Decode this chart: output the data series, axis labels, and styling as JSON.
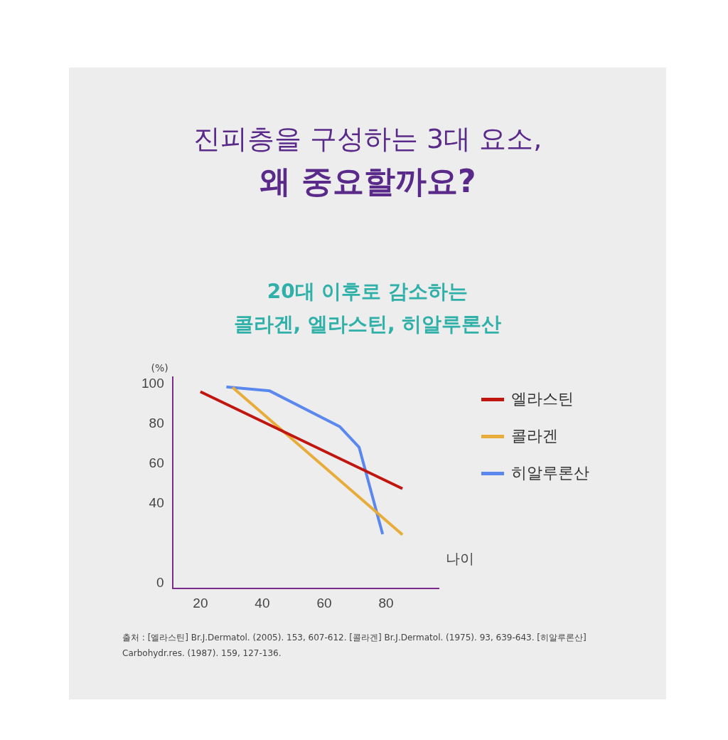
{
  "chart_data": {
    "type": "line",
    "title": "진피층을 구성하는 3대 요소,\n왜 중요할까요?",
    "subtitle": "20대 이후로 감소하는\n콜라겐, 엘라스틴, 히알루론산",
    "xlabel": "나이",
    "ylabel": "(%)",
    "xlim": [
      11,
      97
    ],
    "xticks": [
      20,
      40,
      60,
      80
    ],
    "ylim": [
      -2.5,
      103.5
    ],
    "yticks": [
      0,
      40,
      60,
      80,
      100
    ],
    "series": [
      {
        "name": "엘라스틴",
        "color": "#c0160f",
        "x": [
          20,
          85.3
        ],
        "values": [
          96.2,
          47.6
        ]
      },
      {
        "name": "콜라겐",
        "color": "#e8ac3a",
        "x": [
          30.4,
          85.3
        ],
        "values": [
          98.3,
          24.5
        ]
      },
      {
        "name": "히알루론산",
        "color": "#5b88ee",
        "x": [
          28.4,
          42.4,
          65.1,
          71.3,
          78.9
        ],
        "values": [
          98.6,
          96.6,
          78.6,
          68.3,
          24.8
        ]
      }
    ],
    "grid": false,
    "legend": "right",
    "marker": "none",
    "line_style": "solid",
    "annotations": [
      "출처 : [엘라스틴] Br.J.Dermatol. (2005). 153, 607-612. [콜라겐] Br.J.Dermatol. (1975). 93, 639-643. [히알루론산] Carbohydr.res. (1987). 159, 127-136."
    ]
  }
}
